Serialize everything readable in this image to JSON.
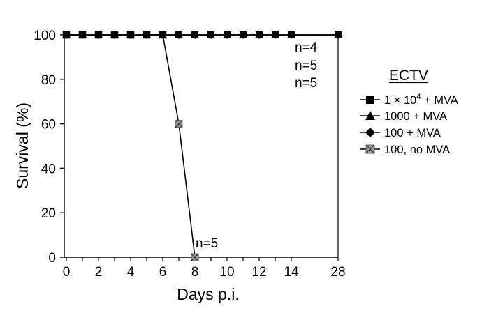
{
  "chart_data": {
    "type": "line",
    "ylabel": "Survival (%)",
    "xlabel": "Days p.i.",
    "ylim": [
      0,
      100
    ],
    "y_ticks": [
      "0",
      "20",
      "40",
      "60",
      "80",
      "100"
    ],
    "x_tick_values": [
      0,
      2,
      4,
      6,
      8,
      10,
      12,
      14,
      28
    ],
    "x_tick_labels": [
      "0",
      "2",
      "4",
      "6",
      "8",
      "10",
      "12",
      "14",
      "28"
    ],
    "x_axis_note": "axis is broken between day 14 and day 28 (day 28 drawn at end)",
    "grid": false,
    "legend": {
      "title": "ECTV",
      "position": "right"
    },
    "series": [
      {
        "name": "1 × 10⁴ + MVA",
        "label_main": "1 × 10",
        "label_sup": "4",
        "label_rest": " + MVA",
        "marker": "square",
        "color": "#000000",
        "x": [
          0,
          1,
          2,
          3,
          4,
          5,
          6,
          7,
          8,
          9,
          10,
          11,
          12,
          13,
          14,
          28
        ],
        "y": [
          100,
          100,
          100,
          100,
          100,
          100,
          100,
          100,
          100,
          100,
          100,
          100,
          100,
          100,
          100,
          100
        ],
        "n_label": "n=4"
      },
      {
        "name": "1000 + MVA",
        "label_main": "1000 + MVA",
        "marker": "triangle",
        "color": "#000000",
        "x": [
          0,
          1,
          2,
          3,
          4,
          5,
          6,
          7,
          8,
          9,
          10,
          11,
          12,
          13,
          14,
          28
        ],
        "y": [
          100,
          100,
          100,
          100,
          100,
          100,
          100,
          100,
          100,
          100,
          100,
          100,
          100,
          100,
          100,
          100
        ],
        "n_label": "n=5"
      },
      {
        "name": "100 + MVA",
        "label_main": "100 + MVA",
        "marker": "diamond",
        "color": "#000000",
        "x": [
          0,
          1,
          2,
          3,
          4,
          5,
          6,
          7,
          8,
          9,
          10,
          11,
          12,
          13,
          14,
          28
        ],
        "y": [
          100,
          100,
          100,
          100,
          100,
          100,
          100,
          100,
          100,
          100,
          100,
          100,
          100,
          100,
          100,
          100
        ],
        "n_label": "n=5"
      },
      {
        "name": "100, no MVA",
        "label_main": "100, no MVA",
        "marker": "square-x",
        "color": "#9a9a9a",
        "x": [
          0,
          1,
          2,
          3,
          4,
          5,
          6,
          7,
          8
        ],
        "y": [
          100,
          100,
          100,
          100,
          100,
          100,
          100,
          60,
          0
        ],
        "n_label": "n=5"
      }
    ]
  }
}
